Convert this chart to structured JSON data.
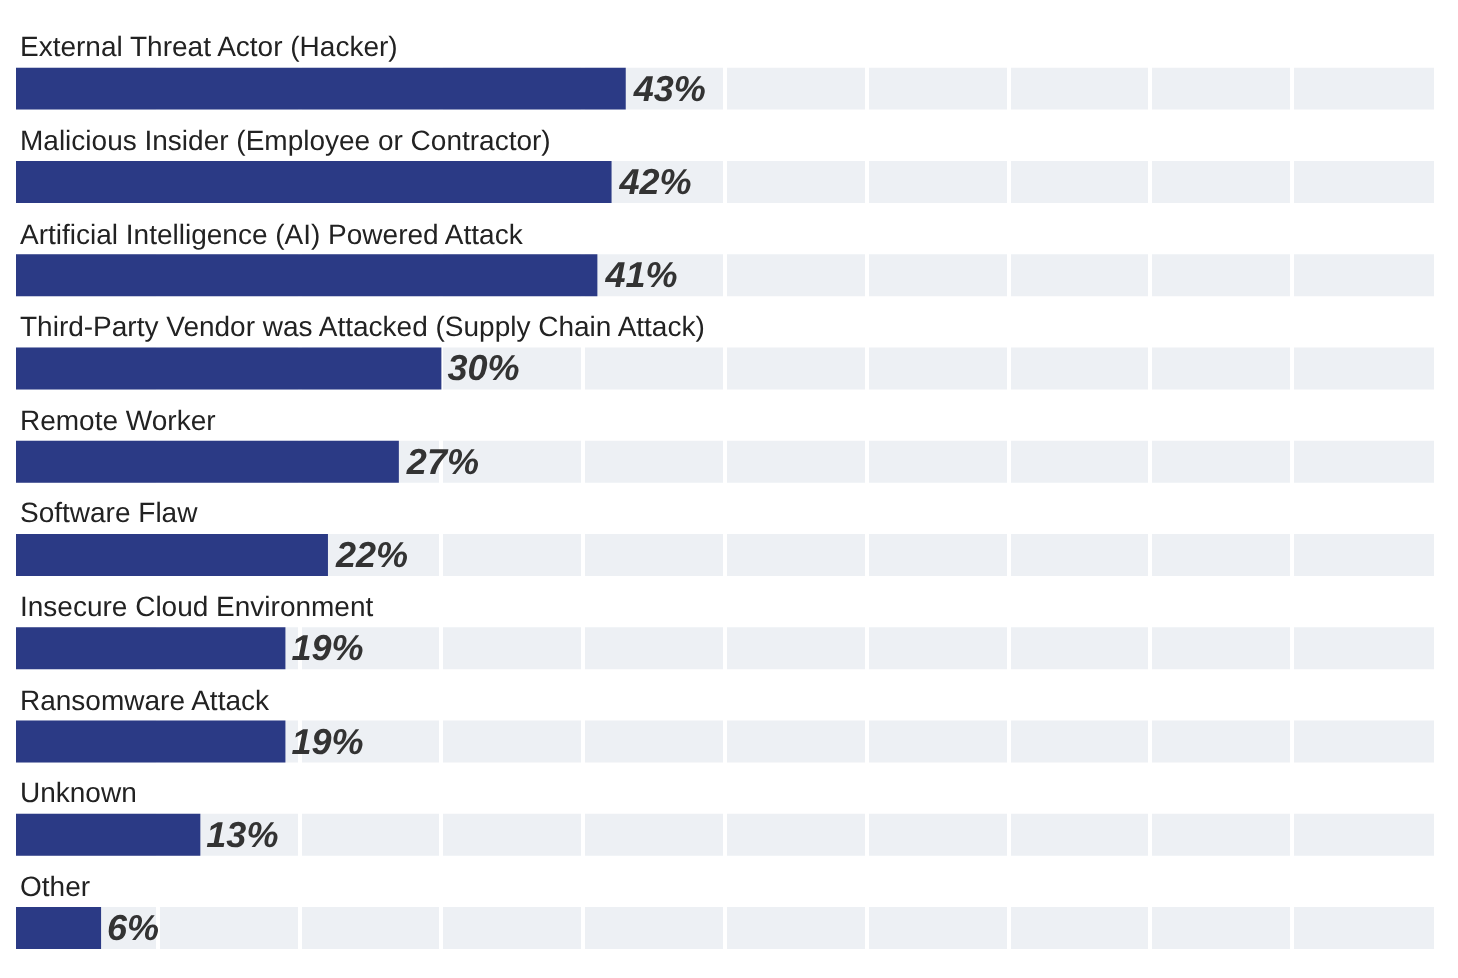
{
  "chart_data": {
    "type": "bar",
    "orientation": "horizontal",
    "categories": [
      "External Threat Actor (Hacker)",
      "Malicious Insider (Employee or Contractor)",
      "Artificial Intelligence (AI) Powered Attack",
      "Third-Party Vendor was Attacked (Supply Chain Attack)",
      "Remote Worker",
      "Software Flaw",
      "Insecure Cloud Environment",
      "Ransomware Attack",
      "Unknown",
      "Other"
    ],
    "values": [
      43,
      42,
      41,
      30,
      27,
      22,
      19,
      19,
      13,
      6
    ],
    "value_labels": [
      "43%",
      "42%",
      "41%",
      "30%",
      "27%",
      "22%",
      "19%",
      "19%",
      "13%",
      "6%"
    ],
    "color": "#2b3a85",
    "xlim": [
      0,
      100
    ],
    "xticks": [
      {
        "value": 10,
        "label": null
      },
      {
        "value": 20,
        "label": null
      },
      {
        "value": 30,
        "label": null
      },
      {
        "value": 40,
        "label": null
      },
      {
        "value": 50,
        "label": null
      },
      {
        "value": 60,
        "label": null
      },
      {
        "value": 70,
        "label": null
      },
      {
        "value": 80,
        "label": null
      },
      {
        "value": 90,
        "label": null
      }
    ],
    "grid": "x"
  }
}
